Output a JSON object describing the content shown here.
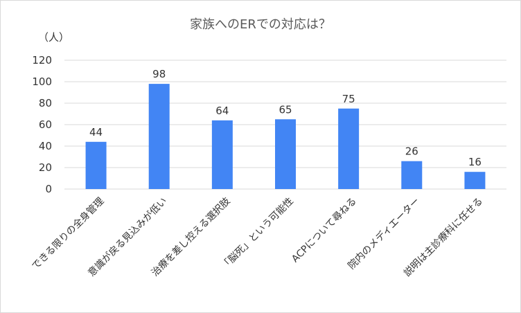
{
  "chart_data": {
    "type": "bar",
    "title": "家族へのERでの対応は？",
    "unit_label": "（人）",
    "categories": [
      "できる限りの全身管理",
      "意識が戻る見込みが低い",
      "治療を差し控える選択肢",
      "「脳死」という可能性",
      "ACPについて尋ねる",
      "院内のメディエーター",
      "説明は主診療科に任せる"
    ],
    "values": [
      44,
      98,
      64,
      65,
      75,
      26,
      16
    ],
    "ylim": [
      0,
      120
    ],
    "yticks": [
      0,
      20,
      40,
      60,
      80,
      100,
      120
    ],
    "grid": true,
    "bar_color": "#4285f4"
  }
}
